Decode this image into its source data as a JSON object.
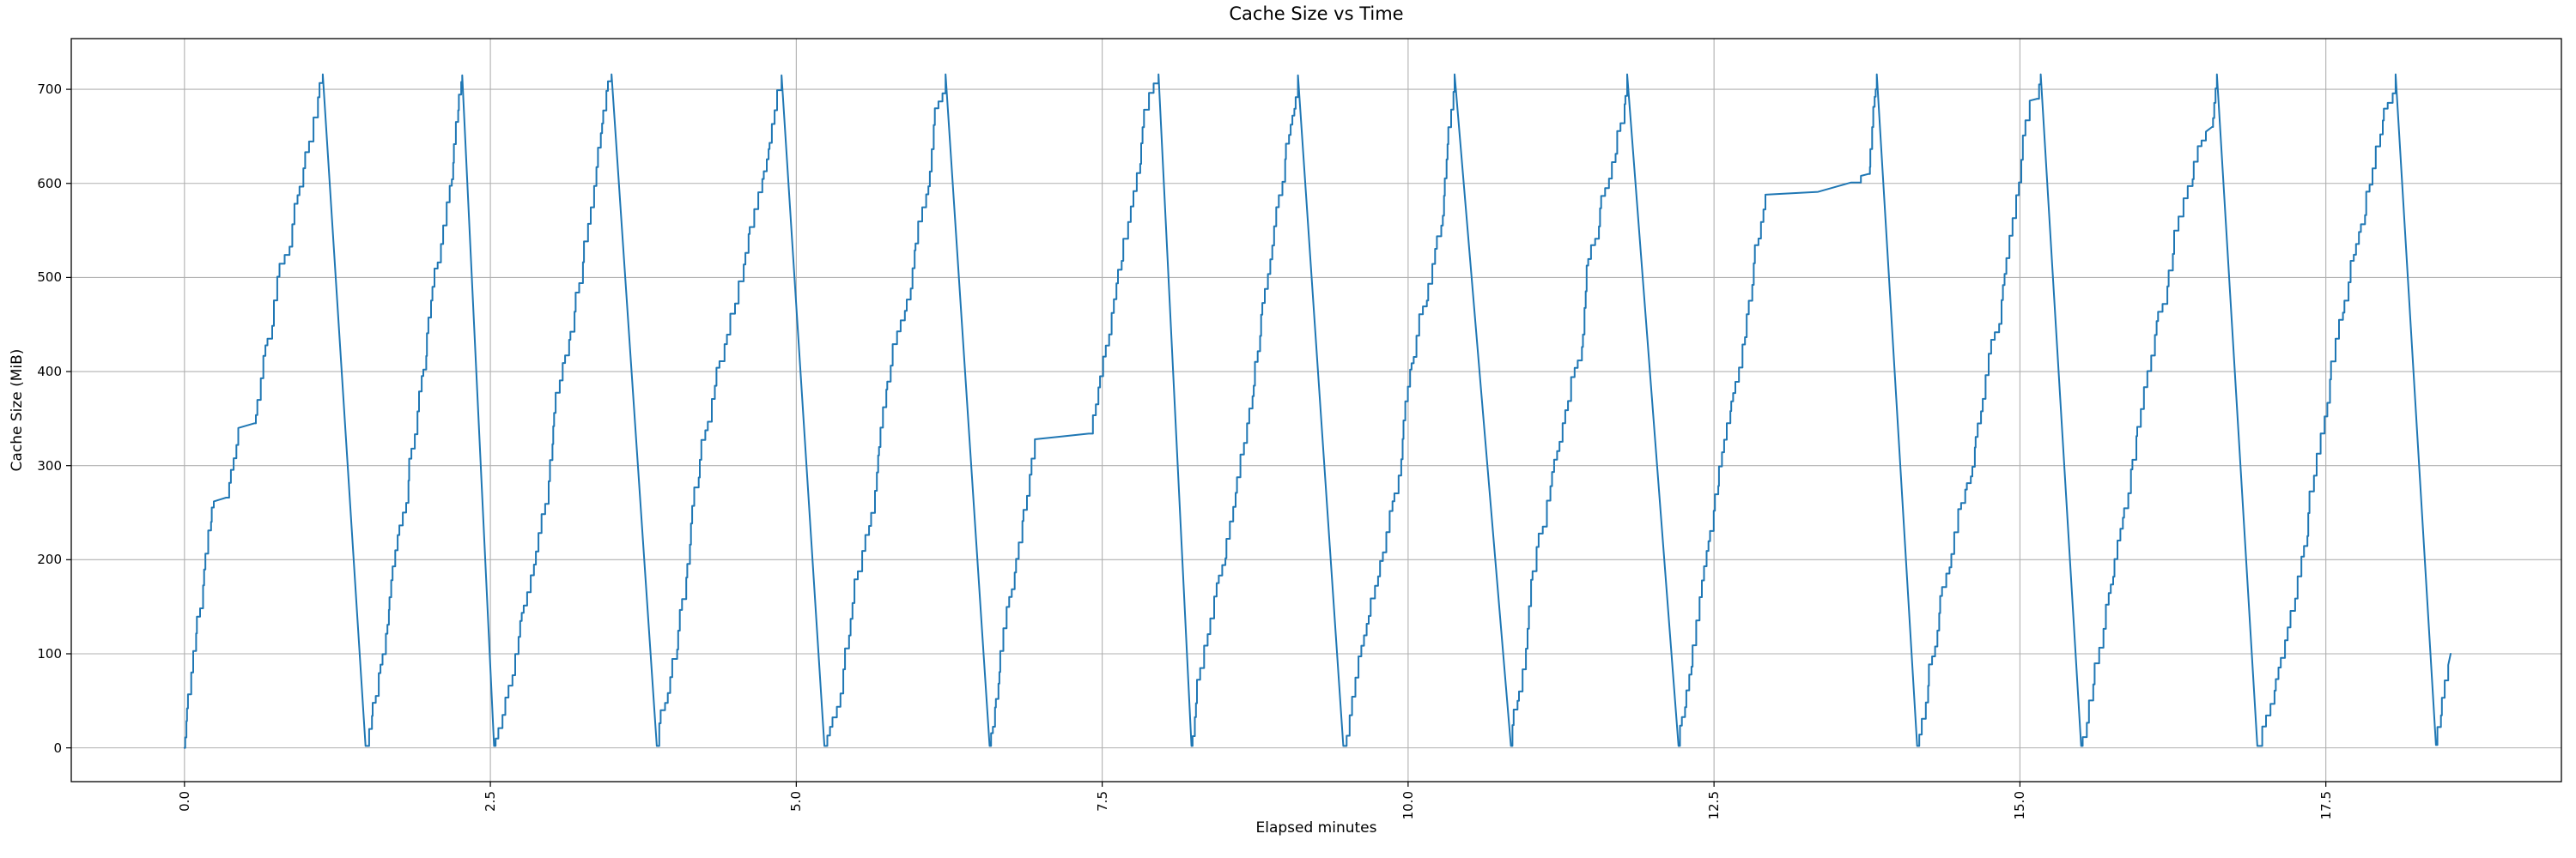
{
  "chart": {
    "title": "Cache Size vs Time",
    "xlabel": "Elapsed minutes",
    "ylabel": "Cache Size (MiB)"
  },
  "chart_data": {
    "type": "line",
    "title": "Cache Size vs Time",
    "xlabel": "Elapsed minutes",
    "ylabel": "Cache Size (MiB)",
    "legend": null,
    "grid": true,
    "line_color": "#1f77b4",
    "grid_color": "#b0b0b0",
    "spine_color": "#000000",
    "x_ticks": [
      0.0,
      2.5,
      5.0,
      7.5,
      10.0,
      12.5,
      15.0,
      17.5
    ],
    "x_tick_labels": [
      "0.0",
      "2.5",
      "5.0",
      "7.5",
      "10.0",
      "12.5",
      "15.0",
      "17.5"
    ],
    "y_ticks": [
      0,
      100,
      200,
      300,
      400,
      500,
      600,
      700
    ],
    "y_tick_labels": [
      "0",
      "100",
      "200",
      "300",
      "400",
      "500",
      "600",
      "700"
    ],
    "xlim": [
      -0.925,
      19.425
    ],
    "ylim": [
      -35.9,
      753.9
    ],
    "x_tick_rotation_deg": 90,
    "pattern": "sawtooth: staircase fill of cache from 0 to ~716 MiB followed by a steep flush back to ~0, repeated 13 times over ~18.5 minutes",
    "series": [
      {
        "name": "cache_size_mib",
        "interpolation_modes": {
          "s": "staircase-rise",
          "l": "straight-line"
        },
        "keypoints": [
          [
            0.0,
            0,
            "start"
          ],
          [
            0.24,
            262,
            "s"
          ],
          [
            0.34,
            266,
            "l"
          ],
          [
            0.44,
            340,
            "s"
          ],
          [
            0.57,
            345,
            "l"
          ],
          [
            1.13,
            716,
            "s"
          ],
          [
            1.48,
            2,
            "l"
          ],
          [
            2.27,
            715,
            "s"
          ],
          [
            2.53,
            2,
            "l"
          ],
          [
            3.49,
            716,
            "s"
          ],
          [
            3.86,
            2,
            "l"
          ],
          [
            4.88,
            715,
            "s"
          ],
          [
            5.23,
            2,
            "l"
          ],
          [
            6.22,
            716,
            "s"
          ],
          [
            6.58,
            2,
            "l"
          ],
          [
            6.95,
            328,
            "s"
          ],
          [
            7.39,
            334,
            "l"
          ],
          [
            7.96,
            716,
            "s"
          ],
          [
            8.23,
            2,
            "l"
          ],
          [
            9.1,
            715,
            "s"
          ],
          [
            9.47,
            2,
            "l"
          ],
          [
            10.38,
            716,
            "s"
          ],
          [
            10.84,
            2,
            "l"
          ],
          [
            11.79,
            716,
            "s"
          ],
          [
            12.21,
            2,
            "l"
          ],
          [
            12.92,
            588,
            "s"
          ],
          [
            13.35,
            591,
            "l"
          ],
          [
            13.62,
            601,
            "l"
          ],
          [
            13.7,
            608,
            "s"
          ],
          [
            13.76,
            610,
            "l"
          ],
          [
            13.83,
            716,
            "s"
          ],
          [
            14.16,
            2,
            "l"
          ],
          [
            15.08,
            688,
            "s"
          ],
          [
            15.14,
            690,
            "l"
          ],
          [
            15.17,
            716,
            "s"
          ],
          [
            15.5,
            2,
            "l"
          ],
          [
            16.52,
            655,
            "s"
          ],
          [
            16.57,
            660,
            "l"
          ],
          [
            16.61,
            716,
            "s"
          ],
          [
            16.94,
            2,
            "l"
          ],
          [
            18.07,
            716,
            "s"
          ],
          [
            18.4,
            3,
            "l"
          ],
          [
            18.5,
            88,
            "s"
          ],
          [
            18.52,
            100,
            "l"
          ]
        ],
        "peak_value_mib": 716,
        "valley_value_mib": 0,
        "peak_times_min": [
          1.13,
          2.27,
          3.49,
          4.88,
          6.22,
          7.96,
          9.1,
          10.38,
          11.79,
          13.83,
          15.17,
          16.61,
          18.07
        ],
        "end_time_min": 18.52,
        "end_value_mib": 100
      }
    ]
  }
}
